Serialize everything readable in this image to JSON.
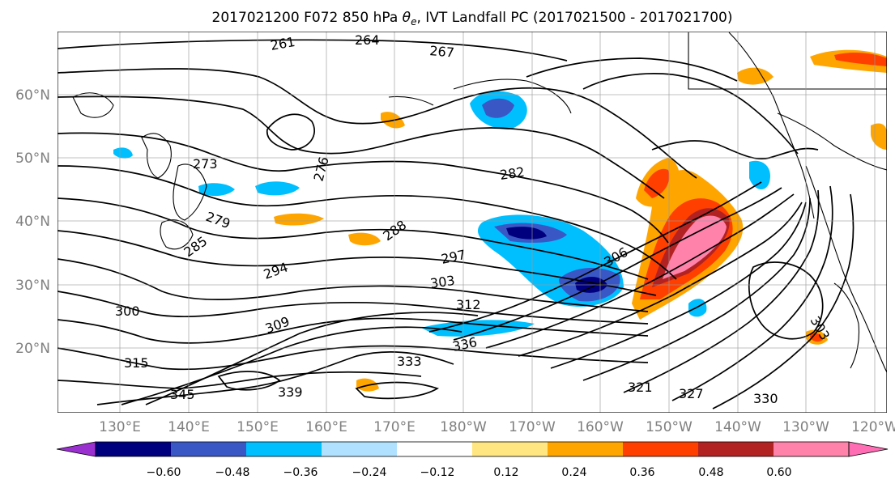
{
  "title_prefix": "2017021200 F072 850 hPa ",
  "title_symbol": "θ",
  "title_subscript": "e",
  "title_suffix": ", IVT Landfall PC (2017021500 - 2017021700)",
  "map": {
    "lat_labels": [
      "60°N",
      "50°N",
      "40°N",
      "30°N",
      "20°N"
    ],
    "lon_labels": [
      "130°E",
      "140°E",
      "150°E",
      "160°E",
      "170°E",
      "180°W",
      "170°W",
      "160°W",
      "150°W",
      "140°W",
      "130°W",
      "120°W"
    ],
    "contour_labels": [
      "261",
      "264",
      "267",
      "273",
      "276",
      "279",
      "282",
      "285",
      "288",
      "294",
      "297",
      "300",
      "303",
      "306",
      "309",
      "312",
      "315",
      "321",
      "327",
      "330",
      "333",
      "336",
      "339",
      "345",
      "303"
    ],
    "contour_levels": [
      261,
      264,
      267,
      270,
      273,
      276,
      279,
      282,
      285,
      288,
      291,
      294,
      297,
      300,
      303,
      306,
      309,
      312,
      315,
      318,
      321,
      324,
      327,
      330,
      333,
      336,
      339,
      342,
      345
    ]
  },
  "colorbar": {
    "tick_labels": [
      "−0.60",
      "−0.48",
      "−0.36",
      "−0.24",
      "−0.12",
      "0.12",
      "0.24",
      "0.36",
      "0.48",
      "0.60"
    ],
    "bins": [
      {
        "range": "< -0.60",
        "color": "#9b30d0"
      },
      {
        "range": "-0.60 to -0.48",
        "color": "#00007f"
      },
      {
        "range": "-0.48 to -0.36",
        "color": "#3a57c6"
      },
      {
        "range": "-0.36 to -0.24",
        "color": "#00bfff"
      },
      {
        "range": "-0.24 to -0.12",
        "color": "#b0e2ff"
      },
      {
        "range": "-0.12 to 0.12",
        "color": "#ffffff"
      },
      {
        "range": "0.12 to 0.24",
        "color": "#ffe680"
      },
      {
        "range": "0.24 to 0.36",
        "color": "#ffa500"
      },
      {
        "range": "0.36 to 0.48",
        "color": "#ff3f00"
      },
      {
        "range": "0.48 to 0.60",
        "color": "#b22222"
      },
      {
        "range": "0.60 to max",
        "color": "#ff82ab"
      },
      {
        "range": "> max",
        "color": "#ff6eb4"
      }
    ]
  },
  "shaded_regions": [
    {
      "label": "neg-north-pacific-70N",
      "color": "#3a57c6"
    },
    {
      "label": "neg-central-pacific-38N",
      "color": "#00007f"
    },
    {
      "label": "neg-subtropical-31N",
      "color": "#00007f"
    },
    {
      "label": "pos-ne-pacific-plume",
      "color": "#ff82ab"
    },
    {
      "label": "pos-arctic-corner",
      "color": "#ff3f00"
    }
  ]
}
